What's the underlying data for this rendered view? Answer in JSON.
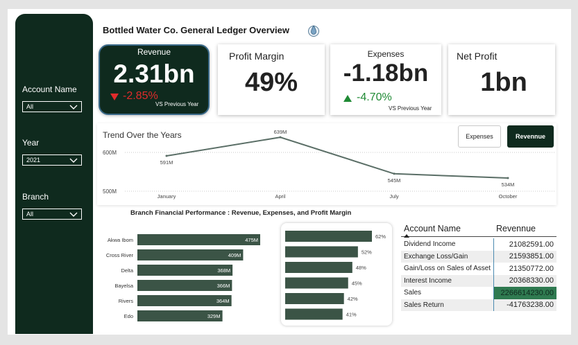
{
  "dashboard": {
    "title": "Bottled Water Co. General Ledger Overview",
    "accent": "#0f2a1e"
  },
  "slicers": [
    {
      "title": "Account Name",
      "value": "All"
    },
    {
      "title": "Year",
      "value": "2021"
    },
    {
      "title": "Branch",
      "value": "All"
    }
  ],
  "kpis": {
    "revenue": {
      "label": "Revenue",
      "value": "2.31bn",
      "change": "-2.85%",
      "note": "VS Previous Year"
    },
    "profit_margin": {
      "label": "Profit Margin",
      "value": "49%"
    },
    "expenses": {
      "label": "Expenses",
      "value": "-1.18bn",
      "change": "-4.70%",
      "note": "VS Previous Year"
    },
    "net_profit": {
      "label": "Net Profit",
      "value": "1bn"
    }
  },
  "trend": {
    "title": "Trend Over the Years",
    "toggle_expenses": "Expenses",
    "toggle_revenue": "Revennue"
  },
  "branch_section": {
    "title": "Branch Financial Performance : Revenue, Expenses, and Profit Margin"
  },
  "table": {
    "headers": [
      "Account Name",
      "Revennue"
    ],
    "rows": [
      {
        "account": "Dividend Income",
        "value": "21082591.00"
      },
      {
        "account": "Exchange Loss/Gain",
        "value": "21593851.00"
      },
      {
        "account": "Gain/Loss on Sales of Asset",
        "value": "21350772.00"
      },
      {
        "account": "Interest Income",
        "value": "20368330.00"
      },
      {
        "account": "Sales",
        "value": "2266614230.00"
      },
      {
        "account": "Sales Return",
        "value": "-41763238.00"
      }
    ]
  },
  "chart_data": [
    {
      "type": "line",
      "title": "Trend Over the Years",
      "x": [
        "January",
        "April",
        "July",
        "October"
      ],
      "series": [
        {
          "values": [
            591,
            639,
            545,
            534
          ]
        }
      ],
      "point_labels": [
        "591M",
        "639M",
        "545M",
        "534M"
      ],
      "y_ticks": [
        "500M",
        "600M"
      ],
      "ylim": [
        500,
        650
      ]
    },
    {
      "type": "bar",
      "orientation": "horizontal",
      "categories": [
        "Akwa Ibom",
        "Cross River",
        "Delta",
        "Bayelsa",
        "Rivers",
        "Edo"
      ],
      "values": [
        475,
        409,
        368,
        366,
        364,
        329
      ],
      "value_labels": [
        "475M",
        "409M",
        "368M",
        "366M",
        "364M",
        "329M"
      ]
    },
    {
      "type": "bar",
      "orientation": "horizontal",
      "values": [
        62,
        52,
        48,
        45,
        42,
        41
      ],
      "value_labels": [
        "62%",
        "52%",
        "48%",
        "45%",
        "42%",
        "41%"
      ]
    }
  ]
}
